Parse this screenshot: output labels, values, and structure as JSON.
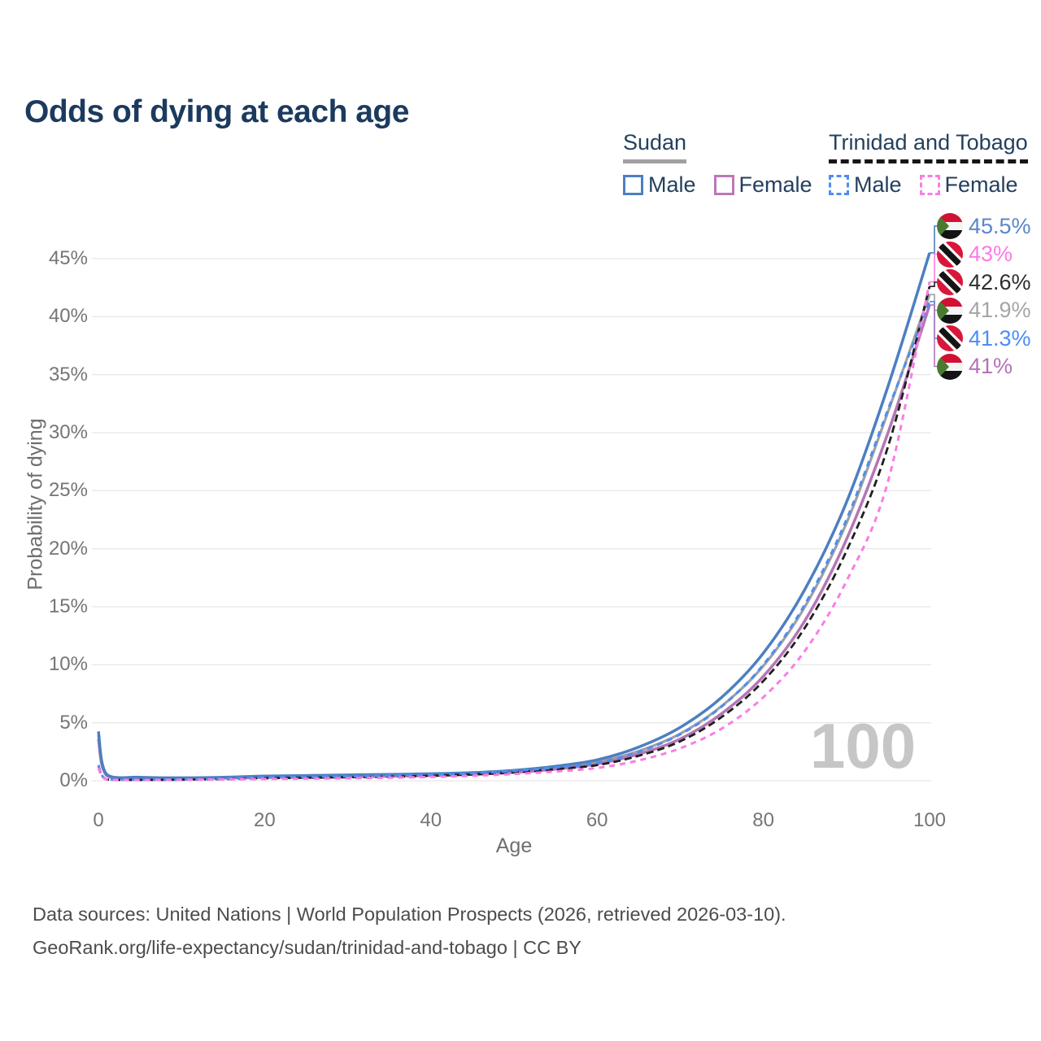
{
  "title": "Odds of dying at each age",
  "legend": {
    "groups": [
      {
        "name": "Sudan",
        "underline": {
          "style": "solid",
          "color": "#a0a0a0"
        },
        "items": [
          {
            "label": "Male",
            "color": "#4d7fc0",
            "dashed": false
          },
          {
            "label": "Female",
            "color": "#bd77b6",
            "dashed": false
          }
        ]
      },
      {
        "name": "Trinidad and Tobago",
        "underline": {
          "style": "dashed",
          "color": "#161616"
        },
        "items": [
          {
            "label": "Male",
            "color": "#4c8df5",
            "dashed": true
          },
          {
            "label": "Female",
            "color": "#fb7ce4",
            "dashed": true
          }
        ]
      }
    ]
  },
  "axes": {
    "y_title": "Probability of dying",
    "x_title": "Age",
    "y_ticks": [
      "0%",
      "5%",
      "10%",
      "15%",
      "20%",
      "25%",
      "30%",
      "35%",
      "40%",
      "45%"
    ],
    "x_ticks": [
      "0",
      "20",
      "40",
      "60",
      "80",
      "100"
    ]
  },
  "watermark": "100",
  "footer": {
    "line1": "Data sources: United Nations | World Population Prospects (2026, retrieved 2026-03-10).",
    "line2": "GeoRank.org/life-expectancy/sudan/trinidad-and-tobago | CC BY"
  },
  "chart_data": {
    "type": "line",
    "title": "Odds of dying at each age",
    "xlabel": "Age",
    "ylabel": "Probability of dying",
    "xlim": [
      0,
      100
    ],
    "ylim": [
      0,
      47
    ],
    "grid": true,
    "x": [
      0,
      1,
      5,
      10,
      15,
      20,
      25,
      30,
      35,
      40,
      45,
      50,
      55,
      60,
      65,
      70,
      75,
      80,
      85,
      90,
      95,
      100
    ],
    "series": [
      {
        "key": "sudan_both",
        "name": "Sudan — Both sexes",
        "color": "#a0a0a0",
        "dash": null,
        "width": 3.2,
        "values": [
          3.95,
          0.5,
          0.27,
          0.22,
          0.26,
          0.34,
          0.38,
          0.42,
          0.47,
          0.52,
          0.62,
          0.8,
          1.1,
          1.6,
          2.55,
          4.05,
          6.45,
          9.9,
          15.0,
          22.2,
          31.8,
          41.9
        ]
      },
      {
        "key": "sudan_female",
        "name": "Sudan — Female",
        "color": "#b476b4",
        "dash": null,
        "width": 3.5,
        "values": [
          3.6,
          0.45,
          0.25,
          0.2,
          0.22,
          0.28,
          0.31,
          0.34,
          0.39,
          0.45,
          0.55,
          0.72,
          1.0,
          1.45,
          2.3,
          3.6,
          5.8,
          9.0,
          13.8,
          20.8,
          30.0,
          41.0
        ]
      },
      {
        "key": "sudan_male",
        "name": "Sudan — Male",
        "color": "#4d7fc0",
        "dash": null,
        "width": 3.5,
        "values": [
          4.25,
          0.55,
          0.3,
          0.25,
          0.3,
          0.4,
          0.45,
          0.5,
          0.55,
          0.6,
          0.7,
          0.9,
          1.25,
          1.8,
          2.9,
          4.6,
          7.2,
          11.0,
          16.5,
          24.0,
          34.0,
          45.5
        ]
      },
      {
        "key": "tt_both",
        "name": "Trinidad and Tobago — Both sexes",
        "color": "#1f1f1f",
        "dash": "9 5",
        "width": 2.8,
        "values": [
          1.25,
          0.11,
          0.07,
          0.09,
          0.15,
          0.22,
          0.26,
          0.3,
          0.36,
          0.43,
          0.55,
          0.72,
          1.0,
          1.35,
          2.15,
          3.4,
          5.5,
          8.6,
          13.2,
          19.8,
          28.8,
          42.6
        ]
      },
      {
        "key": "tt_male",
        "name": "Trinidad and Tobago — Male",
        "color": "#4c8df5",
        "dash": "7 6",
        "width": 3.0,
        "values": [
          1.35,
          0.12,
          0.08,
          0.1,
          0.18,
          0.28,
          0.33,
          0.38,
          0.44,
          0.52,
          0.65,
          0.85,
          1.15,
          1.55,
          2.5,
          4.0,
          6.4,
          10.0,
          15.2,
          22.5,
          32.0,
          41.3
        ]
      },
      {
        "key": "tt_female",
        "name": "Trinidad and Tobago — Female",
        "color": "#fb7ce4",
        "dash": "7 6",
        "width": 3.0,
        "values": [
          1.1,
          0.1,
          0.06,
          0.08,
          0.11,
          0.15,
          0.18,
          0.21,
          0.26,
          0.33,
          0.43,
          0.58,
          0.8,
          1.1,
          1.75,
          2.8,
          4.5,
          7.2,
          11.2,
          17.2,
          25.8,
          43.0
        ]
      }
    ],
    "end_labels": [
      {
        "text": "45.5%",
        "series": "sudan_male",
        "flag": "sudan",
        "color": "#5b86c8"
      },
      {
        "text": "43%",
        "series": "tt_female",
        "flag": "trinidad",
        "color": "#fb7ce4"
      },
      {
        "text": "42.6%",
        "series": "tt_both",
        "flag": "trinidad",
        "color": "#2e2e2e"
      },
      {
        "text": "41.9%",
        "series": "sudan_both",
        "flag": "sudan",
        "color": "#a5a5a5"
      },
      {
        "text": "41.3%",
        "series": "tt_male",
        "flag": "trinidad",
        "color": "#4c8df5"
      },
      {
        "text": "41%",
        "series": "sudan_female",
        "flag": "sudan",
        "color": "#b273b8"
      }
    ],
    "legend_position": "top-right"
  }
}
